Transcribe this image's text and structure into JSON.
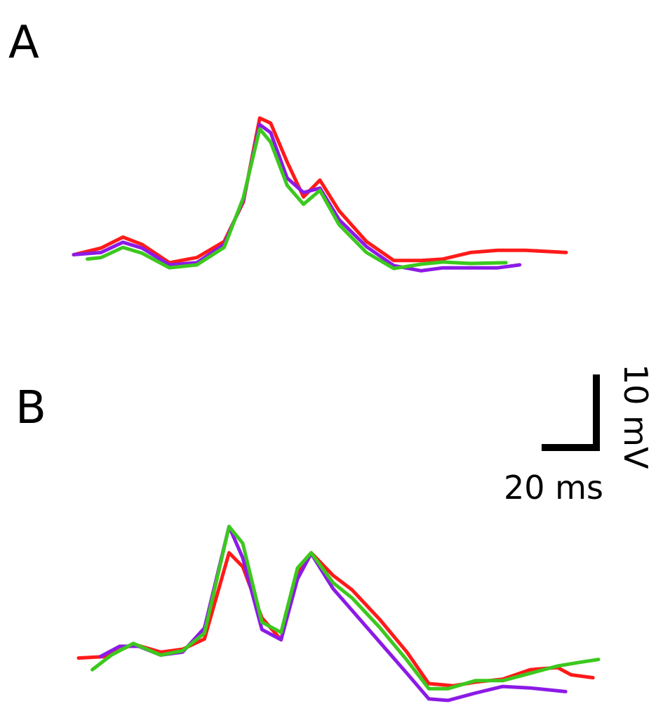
{
  "chart_data": [
    {
      "type": "line",
      "panel_label": "A",
      "x_unit": "ms",
      "y_unit": "mV",
      "series": [
        {
          "color": "#ff1a1a",
          "points": [
            [
              0,
              -1.2
            ],
            [
              10,
              -0.3
            ],
            [
              18,
              1.2
            ],
            [
              25,
              0.2
            ],
            [
              35,
              -2.3
            ],
            [
              45,
              -1.6
            ],
            [
              55,
              0.6
            ],
            [
              62,
              6.0
            ],
            [
              68,
              17.5
            ],
            [
              72,
              16.8
            ],
            [
              78,
              11.5
            ],
            [
              84,
              6.7
            ],
            [
              90,
              9.0
            ],
            [
              97,
              4.8
            ],
            [
              107,
              0.6
            ],
            [
              117,
              -2.0
            ],
            [
              127,
              -2.0
            ],
            [
              135,
              -1.8
            ],
            [
              145,
              -0.9
            ],
            [
              155,
              -0.6
            ],
            [
              165,
              -0.6
            ],
            [
              180,
              -0.9
            ]
          ]
        },
        {
          "color": "#8c1ae6",
          "points": [
            [
              0,
              -1.2
            ],
            [
              10,
              -0.9
            ],
            [
              18,
              0.5
            ],
            [
              25,
              -0.3
            ],
            [
              35,
              -2.6
            ],
            [
              45,
              -2.3
            ],
            [
              55,
              0.2
            ],
            [
              62,
              6.3
            ],
            [
              68,
              16.6
            ],
            [
              72,
              15.5
            ],
            [
              78,
              9.3
            ],
            [
              84,
              7.3
            ],
            [
              90,
              7.9
            ],
            [
              97,
              3.6
            ],
            [
              107,
              -0.1
            ],
            [
              117,
              -2.7
            ],
            [
              127,
              -3.4
            ],
            [
              135,
              -3.0
            ],
            [
              145,
              -3.0
            ],
            [
              155,
              -3.0
            ],
            [
              163,
              -2.6
            ]
          ]
        },
        {
          "color": "#3cc81e",
          "points": [
            [
              5,
              -1.8
            ],
            [
              10,
              -1.6
            ],
            [
              18,
              -0.2
            ],
            [
              25,
              -1.0
            ],
            [
              35,
              -3.0
            ],
            [
              45,
              -2.6
            ],
            [
              55,
              -0.2
            ],
            [
              62,
              6.6
            ],
            [
              68,
              16.0
            ],
            [
              72,
              14.2
            ],
            [
              78,
              8.3
            ],
            [
              84,
              5.7
            ],
            [
              90,
              7.6
            ],
            [
              97,
              2.9
            ],
            [
              107,
              -0.9
            ],
            [
              117,
              -3.1
            ],
            [
              127,
              -2.5
            ],
            [
              135,
              -2.2
            ],
            [
              145,
              -2.4
            ],
            [
              158,
              -2.3
            ]
          ]
        }
      ]
    },
    {
      "type": "line",
      "panel_label": "B",
      "x_unit": "ms",
      "y_unit": "mV",
      "series": [
        {
          "color": "#ff1a1a",
          "points": [
            [
              0,
              -1.4
            ],
            [
              10,
              -1.2
            ],
            [
              20,
              0.5
            ],
            [
              30,
              -0.6
            ],
            [
              38,
              -0.2
            ],
            [
              46,
              1.2
            ],
            [
              55,
              13.0
            ],
            [
              60,
              11.1
            ],
            [
              67,
              4.1
            ],
            [
              74,
              1.1
            ],
            [
              80,
              10.1
            ],
            [
              85,
              13.0
            ],
            [
              93,
              9.9
            ],
            [
              100,
              7.9
            ],
            [
              110,
              3.9
            ],
            [
              120,
              -0.6
            ],
            [
              128,
              -4.9
            ],
            [
              137,
              -5.2
            ],
            [
              145,
              -4.7
            ],
            [
              155,
              -4.3
            ],
            [
              165,
              -3.0
            ],
            [
              175,
              -2.7
            ],
            [
              180,
              -3.7
            ],
            [
              188,
              -4.1
            ]
          ]
        },
        {
          "color": "#8c1ae6",
          "points": [
            [
              8,
              -1.2
            ],
            [
              15,
              0.2
            ],
            [
              22,
              0.2
            ],
            [
              30,
              -1.0
            ],
            [
              38,
              -0.6
            ],
            [
              46,
              2.7
            ],
            [
              55,
              16.6
            ],
            [
              60,
              12.3
            ],
            [
              67,
              2.5
            ],
            [
              74,
              1.1
            ],
            [
              80,
              9.4
            ],
            [
              85,
              12.9
            ],
            [
              93,
              8.1
            ],
            [
              100,
              5.1
            ],
            [
              110,
              0.8
            ],
            [
              120,
              -3.5
            ],
            [
              128,
              -7.0
            ],
            [
              135,
              -7.2
            ],
            [
              145,
              -6.2
            ],
            [
              155,
              -5.3
            ],
            [
              165,
              -5.5
            ],
            [
              178,
              -6.0
            ]
          ]
        },
        {
          "color": "#3cc81e",
          "points": [
            [
              5,
              -3.0
            ],
            [
              12,
              -1.0
            ],
            [
              20,
              0.6
            ],
            [
              30,
              -1.0
            ],
            [
              38,
              -0.4
            ],
            [
              46,
              2.0
            ],
            [
              55,
              16.6
            ],
            [
              60,
              14.3
            ],
            [
              67,
              3.5
            ],
            [
              74,
              2.1
            ],
            [
              80,
              10.9
            ],
            [
              85,
              13.0
            ],
            [
              93,
              8.9
            ],
            [
              100,
              6.8
            ],
            [
              110,
              2.8
            ],
            [
              120,
              -1.7
            ],
            [
              128,
              -5.6
            ],
            [
              135,
              -5.6
            ],
            [
              145,
              -4.5
            ],
            [
              155,
              -4.5
            ],
            [
              165,
              -3.5
            ],
            [
              175,
              -2.5
            ],
            [
              183,
              -2.0
            ],
            [
              190,
              -1.6
            ]
          ]
        }
      ]
    }
  ],
  "scale_bar": {
    "time_label": "20 ms",
    "time_value": 20,
    "voltage_label": "10 mV",
    "voltage_value": 10
  }
}
